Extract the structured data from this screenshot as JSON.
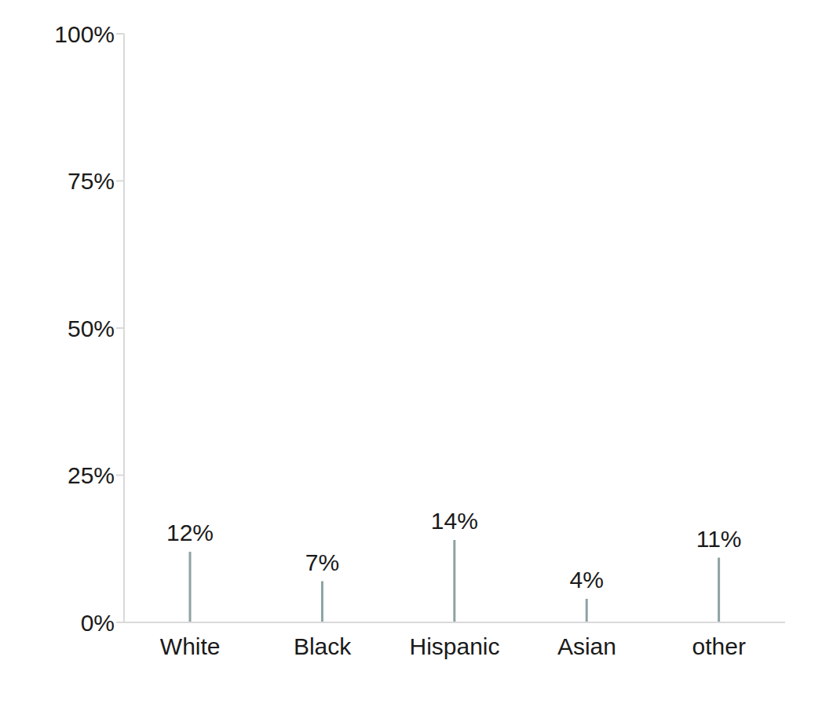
{
  "chart_data": {
    "type": "bar",
    "categories": [
      "White",
      "Black",
      "Hispanic",
      "Asian",
      "other"
    ],
    "values": [
      12,
      7,
      14,
      4,
      11
    ],
    "value_labels": [
      "12%",
      "7%",
      "14%",
      "4%",
      "11%"
    ],
    "color": "#8ea3a3",
    "ylim": [
      0,
      100
    ],
    "yticks": [
      {
        "value": 0,
        "label": "0%"
      },
      {
        "value": 25,
        "label": "25%"
      },
      {
        "value": 50,
        "label": "50%"
      },
      {
        "value": 75,
        "label": "75%"
      },
      {
        "value": 100,
        "label": "100%"
      }
    ],
    "grid": false,
    "data_labels": true
  }
}
